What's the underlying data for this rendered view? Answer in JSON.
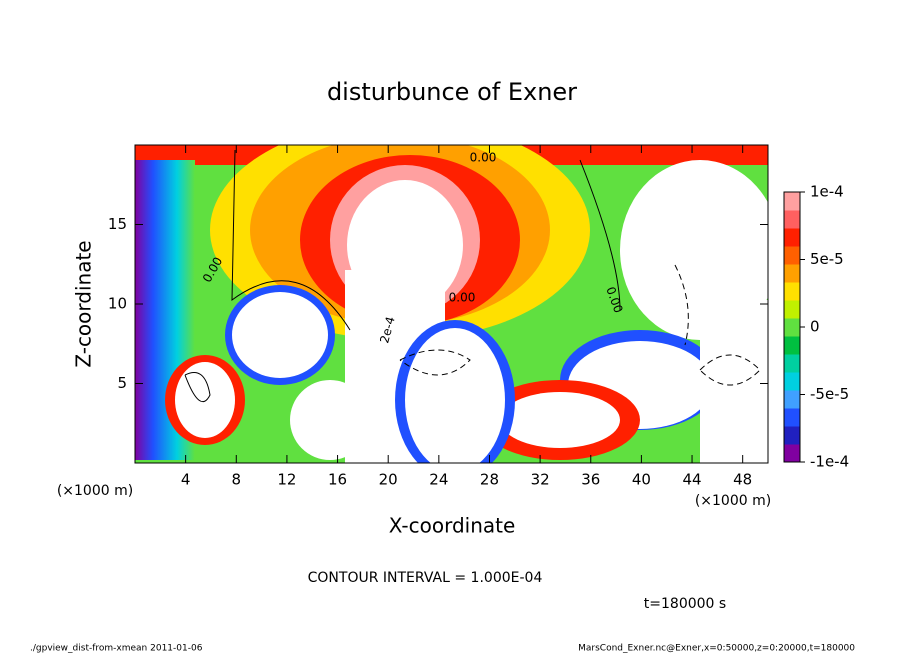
{
  "chart_data": {
    "type": "contour",
    "title": "disturbunce of Exner",
    "x_label": "X-coordinate",
    "y_label": "Z-coordinate",
    "x_unit_labels": [
      "(×1000 m)",
      "(×1000 m)"
    ],
    "xlim": [
      0,
      50
    ],
    "ylim": [
      0,
      20
    ],
    "xticks": [
      4,
      8,
      12,
      16,
      20,
      24,
      28,
      32,
      36,
      40,
      44,
      48
    ],
    "yticks": [
      5,
      10,
      15
    ],
    "colorbar": {
      "lim": [
        -0.0001,
        0.0001
      ],
      "ticks": [
        {
          "value": 0.0001,
          "label": "1e-4"
        },
        {
          "value": 5e-05,
          "label": "5e-5"
        },
        0,
        {
          "value": -5e-05,
          "label": "-5e-5"
        },
        {
          "value": -0.0001,
          "label": "-1e-4"
        }
      ],
      "colors": [
        "#8000a0",
        "#2020c0",
        "#2050ff",
        "#40a0ff",
        "#00d0e0",
        "#00d0a0",
        "#00c040",
        "#60e040",
        "#c0f000",
        "#ffe000",
        "#ffa000",
        "#ff6000",
        "#ff2000",
        "#ff6060",
        "#ffa0a0"
      ]
    },
    "contour_labels": [
      "0.00",
      "0.00",
      "0.00",
      "0.00",
      "2e-4"
    ],
    "contour_interval": "CONTOUR INTERVAL = 1.000E-04",
    "time_label": "t=180000 s",
    "footer_left": "./gpview_dist-from-xmean  2011-01-06",
    "footer_right": "MarsCond_Exner.nc@Exner,x=0:50000,z=0:20000,t=180000"
  }
}
